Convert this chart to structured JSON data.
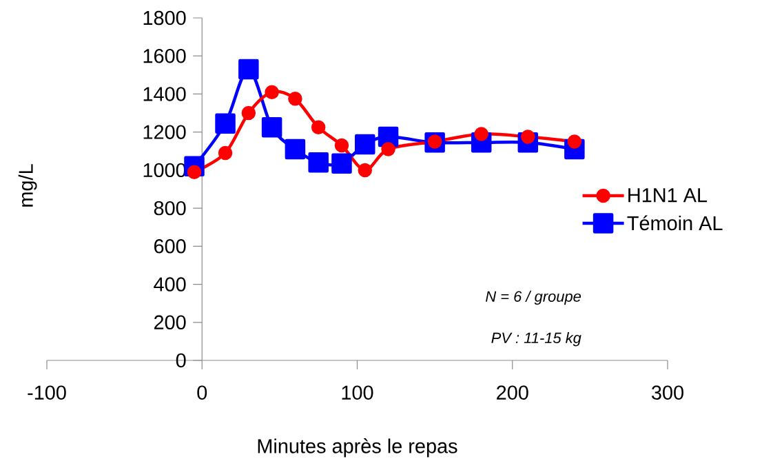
{
  "chart_data": {
    "type": "line",
    "xlabel": "Minutes après le repas",
    "ylabel": "mg/L",
    "xlim": [
      -100,
      300
    ],
    "xticks": [
      -100,
      0,
      100,
      200,
      300
    ],
    "ylim": [
      0,
      1800
    ],
    "yticks": [
      0,
      200,
      400,
      600,
      800,
      1000,
      1200,
      1400,
      1600,
      1800
    ],
    "x": [
      -5,
      15,
      30,
      45,
      60,
      75,
      90,
      105,
      120,
      150,
      180,
      210,
      240
    ],
    "series": [
      {
        "name": "H1N1 AL",
        "color": "#ff0000",
        "marker": "circle",
        "values": [
          990,
          1090,
          1300,
          1410,
          1375,
          1225,
          1130,
          1000,
          1110,
          1150,
          1190,
          1175,
          1150
        ]
      },
      {
        "name": "Témoin AL",
        "color": "#0000ff",
        "marker": "square",
        "values": [
          1020,
          1245,
          1530,
          1225,
          1110,
          1040,
          1035,
          1135,
          1175,
          1145,
          1145,
          1145,
          1110
        ]
      }
    ],
    "legend": "right",
    "grid": false,
    "line_style": "solid",
    "annotations": [
      "N = 6 / groupe",
      "PV : 11-15 kg"
    ]
  }
}
